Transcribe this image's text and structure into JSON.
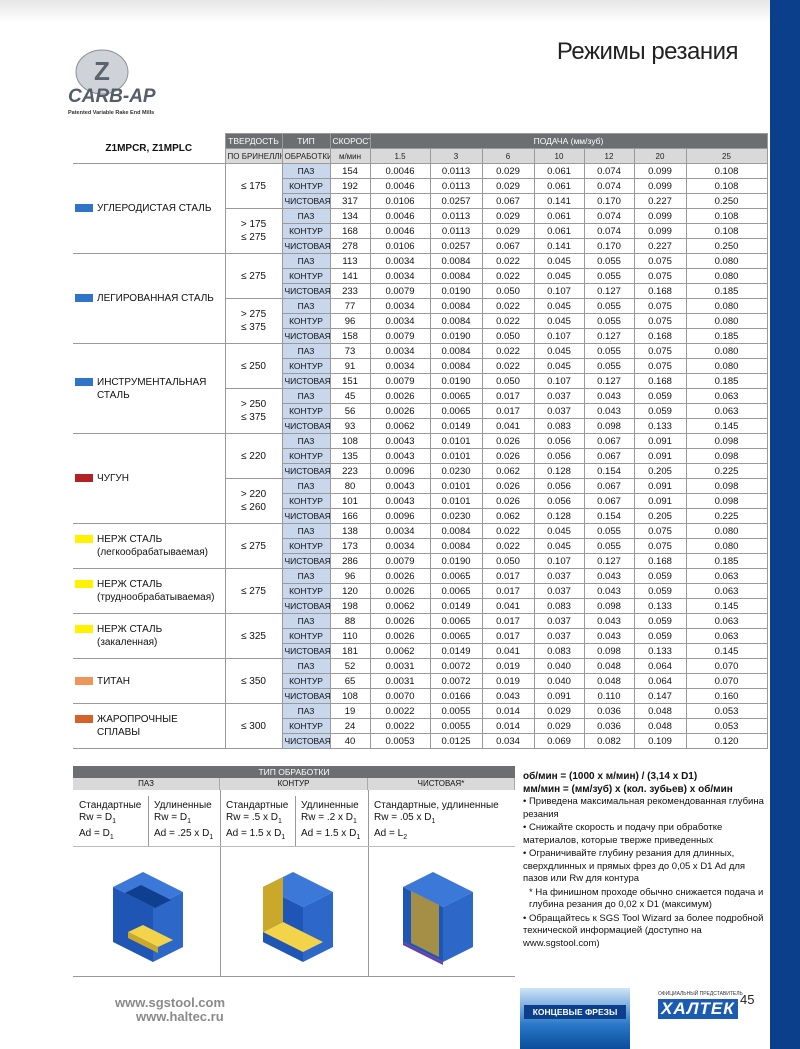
{
  "header": {
    "title": "Режимы резания",
    "logo": "CARB-AP",
    "logo_sub": "Patented Variable Rake End Mills"
  },
  "table": {
    "model": "Z1MPCR, Z1MPLC",
    "h1": [
      "ТВЕРДОСТЬ",
      "ТИП",
      "СКОРОСТЬ",
      "ПОДАЧА (мм/зуб)"
    ],
    "h2": [
      "ПО БРИНЕЛЛЮ",
      "ОБРАБОТКИ",
      "м/мин"
    ],
    "diameters": [
      1.5,
      3,
      6,
      10,
      12,
      20,
      25
    ],
    "groups": [
      {
        "name": [
          "УГЛЕРОДИСТАЯ СТАЛЬ"
        ],
        "color": "#2e75c8",
        "sub": [
          {
            "hardness": [
              "≤ 175"
            ],
            "rows": [
              [
                "ПАЗ",
                154,
                "0.0046",
                "0.0113",
                "0.029",
                "0.061",
                "0.074",
                "0.099",
                "0.108"
              ],
              [
                "КОНТУР",
                192,
                "0.0046",
                "0.0113",
                "0.029",
                "0.061",
                "0.074",
                "0.099",
                "0.108"
              ],
              [
                "ЧИСТОВАЯ",
                317,
                "0.0106",
                "0.0257",
                "0.067",
                "0.141",
                "0.170",
                "0.227",
                "0.250"
              ]
            ]
          },
          {
            "hardness": [
              "> 175",
              "≤ 275"
            ],
            "rows": [
              [
                "ПАЗ",
                134,
                "0.0046",
                "0.0113",
                "0.029",
                "0.061",
                "0.074",
                "0.099",
                "0.108"
              ],
              [
                "КОНТУР",
                168,
                "0.0046",
                "0.0113",
                "0.029",
                "0.061",
                "0.074",
                "0.099",
                "0.108"
              ],
              [
                "ЧИСТОВАЯ",
                278,
                "0.0106",
                "0.0257",
                "0.067",
                "0.141",
                "0.170",
                "0.227",
                "0.250"
              ]
            ]
          }
        ]
      },
      {
        "name": [
          "ЛЕГИРОВАННАЯ СТАЛЬ"
        ],
        "color": "#2e75c8",
        "sub": [
          {
            "hardness": [
              "≤ 275"
            ],
            "rows": [
              [
                "ПАЗ",
                113,
                "0.0034",
                "0.0084",
                "0.022",
                "0.045",
                "0.055",
                "0.075",
                "0.080"
              ],
              [
                "КОНТУР",
                141,
                "0.0034",
                "0.0084",
                "0.022",
                "0.045",
                "0.055",
                "0.075",
                "0.080"
              ],
              [
                "ЧИСТОВАЯ",
                233,
                "0.0079",
                "0.0190",
                "0.050",
                "0.107",
                "0.127",
                "0.168",
                "0.185"
              ]
            ]
          },
          {
            "hardness": [
              "> 275",
              "≤ 375"
            ],
            "rows": [
              [
                "ПАЗ",
                77,
                "0.0034",
                "0.0084",
                "0.022",
                "0.045",
                "0.055",
                "0.075",
                "0.080"
              ],
              [
                "КОНТУР",
                96,
                "0.0034",
                "0.0084",
                "0.022",
                "0.045",
                "0.055",
                "0.075",
                "0.080"
              ],
              [
                "ЧИСТОВАЯ",
                158,
                "0.0079",
                "0.0190",
                "0.050",
                "0.107",
                "0.127",
                "0.168",
                "0.185"
              ]
            ]
          }
        ]
      },
      {
        "name": [
          "ИНСТРУМЕНТАЛЬНАЯ",
          "СТАЛЬ"
        ],
        "color": "#2e75c8",
        "sub": [
          {
            "hardness": [
              "≤ 250"
            ],
            "rows": [
              [
                "ПАЗ",
                73,
                "0.0034",
                "0.0084",
                "0.022",
                "0.045",
                "0.055",
                "0.075",
                "0.080"
              ],
              [
                "КОНТУР",
                91,
                "0.0034",
                "0.0084",
                "0.022",
                "0.045",
                "0.055",
                "0.075",
                "0.080"
              ],
              [
                "ЧИСТОВАЯ",
                151,
                "0.0079",
                "0.0190",
                "0.050",
                "0.107",
                "0.127",
                "0.168",
                "0.185"
              ]
            ]
          },
          {
            "hardness": [
              "> 250",
              "≤ 375"
            ],
            "rows": [
              [
                "ПАЗ",
                45,
                "0.0026",
                "0.0065",
                "0.017",
                "0.037",
                "0.043",
                "0.059",
                "0.063"
              ],
              [
                "КОНТУР",
                56,
                "0.0026",
                "0.0065",
                "0.017",
                "0.037",
                "0.043",
                "0.059",
                "0.063"
              ],
              [
                "ЧИСТОВАЯ",
                93,
                "0.0062",
                "0.0149",
                "0.041",
                "0.083",
                "0.098",
                "0.133",
                "0.145"
              ]
            ]
          }
        ]
      },
      {
        "name": [
          "ЧУГУН"
        ],
        "color": "#b32025",
        "sub": [
          {
            "hardness": [
              "≤ 220"
            ],
            "rows": [
              [
                "ПАЗ",
                108,
                "0.0043",
                "0.0101",
                "0.026",
                "0.056",
                "0.067",
                "0.091",
                "0.098"
              ],
              [
                "КОНТУР",
                135,
                "0.0043",
                "0.0101",
                "0.026",
                "0.056",
                "0.067",
                "0.091",
                "0.098"
              ],
              [
                "ЧИСТОВАЯ",
                223,
                "0.0096",
                "0.0230",
                "0.062",
                "0.128",
                "0.154",
                "0.205",
                "0.225"
              ]
            ]
          },
          {
            "hardness": [
              "> 220",
              "≤ 260"
            ],
            "rows": [
              [
                "ПАЗ",
                80,
                "0.0043",
                "0.0101",
                "0.026",
                "0.056",
                "0.067",
                "0.091",
                "0.098"
              ],
              [
                "КОНТУР",
                101,
                "0.0043",
                "0.0101",
                "0.026",
                "0.056",
                "0.067",
                "0.091",
                "0.098"
              ],
              [
                "ЧИСТОВАЯ",
                166,
                "0.0096",
                "0.0230",
                "0.062",
                "0.128",
                "0.154",
                "0.205",
                "0.225"
              ]
            ]
          }
        ]
      },
      {
        "name": [
          "НЕРЖ СТАЛЬ",
          "(легкообрабатываемая)"
        ],
        "color": "#fff200",
        "sub": [
          {
            "hardness": [
              "≤ 275"
            ],
            "rows": [
              [
                "ПАЗ",
                138,
                "0.0034",
                "0.0084",
                "0.022",
                "0.045",
                "0.055",
                "0.075",
                "0.080"
              ],
              [
                "КОНТУР",
                173,
                "0.0034",
                "0.0084",
                "0.022",
                "0.045",
                "0.055",
                "0.075",
                "0.080"
              ],
              [
                "ЧИСТОВАЯ",
                286,
                "0.0079",
                "0.0190",
                "0.050",
                "0.107",
                "0.127",
                "0.168",
                "0.185"
              ]
            ]
          }
        ]
      },
      {
        "name": [
          "НЕРЖ СТАЛЬ",
          "(труднообрабатываемая)"
        ],
        "color": "#fff200",
        "sub": [
          {
            "hardness": [
              "≤ 275"
            ],
            "rows": [
              [
                "ПАЗ",
                96,
                "0.0026",
                "0.0065",
                "0.017",
                "0.037",
                "0.043",
                "0.059",
                "0.063"
              ],
              [
                "КОНТУР",
                120,
                "0.0026",
                "0.0065",
                "0.017",
                "0.037",
                "0.043",
                "0.059",
                "0.063"
              ],
              [
                "ЧИСТОВАЯ",
                198,
                "0.0062",
                "0.0149",
                "0.041",
                "0.083",
                "0.098",
                "0.133",
                "0.145"
              ]
            ]
          }
        ]
      },
      {
        "name": [
          "НЕРЖ СТАЛЬ (закаленная)"
        ],
        "color": "#fff200",
        "sub": [
          {
            "hardness": [
              "≤ 325"
            ],
            "rows": [
              [
                "ПАЗ",
                88,
                "0.0026",
                "0.0065",
                "0.017",
                "0.037",
                "0.043",
                "0.059",
                "0.063"
              ],
              [
                "КОНТУР",
                110,
                "0.0026",
                "0.0065",
                "0.017",
                "0.037",
                "0.043",
                "0.059",
                "0.063"
              ],
              [
                "ЧИСТОВАЯ",
                181,
                "0.0062",
                "0.0149",
                "0.041",
                "0.083",
                "0.098",
                "0.133",
                "0.145"
              ]
            ]
          }
        ]
      },
      {
        "name": [
          "ТИТАН"
        ],
        "color": "#f0955a",
        "sub": [
          {
            "hardness": [
              "≤ 350"
            ],
            "rows": [
              [
                "ПАЗ",
                52,
                "0.0031",
                "0.0072",
                "0.019",
                "0.040",
                "0.048",
                "0.064",
                "0.070"
              ],
              [
                "КОНТУР",
                65,
                "0.0031",
                "0.0072",
                "0.019",
                "0.040",
                "0.048",
                "0.064",
                "0.070"
              ],
              [
                "ЧИСТОВАЯ",
                108,
                "0.0070",
                "0.0166",
                "0.043",
                "0.091",
                "0.110",
                "0.147",
                "0.160"
              ]
            ]
          }
        ]
      },
      {
        "name": [
          "ЖАРОПРОЧНЫЕ СПЛАВЫ"
        ],
        "color": "#d4622a",
        "sub": [
          {
            "hardness": [
              "≤ 300"
            ],
            "rows": [
              [
                "ПАЗ",
                19,
                "0.0022",
                "0.0055",
                "0.014",
                "0.029",
                "0.036",
                "0.048",
                "0.053"
              ],
              [
                "КОНТУР",
                24,
                "0.0022",
                "0.0055",
                "0.014",
                "0.029",
                "0.036",
                "0.048",
                "0.053"
              ],
              [
                "ЧИСТОВАЯ",
                40,
                "0.0053",
                "0.0125",
                "0.034",
                "0.069",
                "0.082",
                "0.109",
                "0.120"
              ]
            ]
          }
        ]
      }
    ]
  },
  "ops": {
    "title": "ТИП ОБРАБОТКИ",
    "types": [
      "ПАЗ",
      "КОНТУР",
      "ЧИСТОВАЯ*"
    ],
    "cols": [
      {
        "label": "Стандартные",
        "lines": [
          {
            "t": "Rw = D",
            "s": "1"
          },
          {
            "t": "Ad = D",
            "s": "1"
          }
        ]
      },
      {
        "label": "Удлиненные",
        "lines": [
          {
            "t": "Rw = D",
            "s": "1"
          },
          {
            "t": "Ad = .25 x D",
            "s": "1"
          }
        ]
      },
      {
        "label": "Стандартные",
        "lines": [
          {
            "t": "Rw = .5 x D",
            "s": "1"
          },
          {
            "t": "Ad = 1.5 x D",
            "s": "1"
          }
        ]
      },
      {
        "label": "Удлиненные",
        "lines": [
          {
            "t": "Rw = .2 x D",
            "s": "1"
          },
          {
            "t": "Ad = 1.5 x D",
            "s": "1"
          }
        ]
      },
      {
        "label": "Стандартные, удлиненные",
        "lines": [
          {
            "t": "Rw = .05 x D",
            "s": "1"
          },
          {
            "t": "Ad = L",
            "s": "2"
          }
        ]
      }
    ]
  },
  "notes": {
    "formulas": [
      "об/мин = (1000 x м/мин) / (3,14 x D1)",
      "мм/мин = (мм/зуб) x (кол. зубьев) x об/мин"
    ],
    "items": [
      "• Приведена максимальная рекомендованная глубина резания",
      "• Снижайте скорость и подачу при обработке материалов, которые тверже приведенных",
      "• Ограничивайте глубину резания для длинных, сверхдлинных и прямых фрез до 0,05 x D1 Ad для пазов или Rw для контура",
      "* На финишном проходе обычно снижается подача и глубина резания до 0,02 x D1 (максимум)",
      "• Обращайтесь к SGS Tool Wizard за более подробной технической информацией (доступно на www.sgstool.com)"
    ]
  },
  "footer": {
    "sites": [
      "www.sgstool.com",
      "www.haltec.ru"
    ],
    "rep": "ОФИЦИАЛЬНЫЙ ПРЕДСТАВИТЕЛЬ",
    "badge": "КОНЦЕВЫЕ ФРЕЗЫ",
    "brand": "ХАЛТЕК",
    "page": "45"
  }
}
